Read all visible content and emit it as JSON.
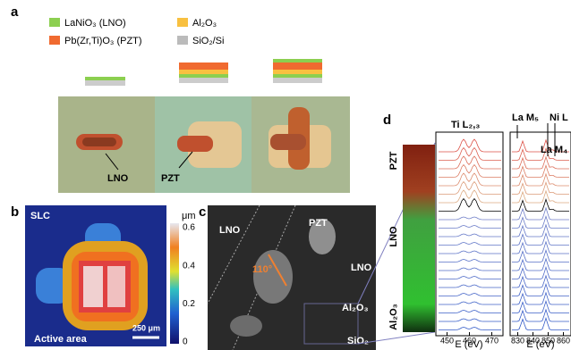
{
  "panels": {
    "a": {
      "label": "a",
      "legend": [
        "LaNiO₃ (LNO)",
        "Al₂O₃",
        "Pb(Zr,Ti)O₃ (PZT)",
        "SiO₂/Si"
      ],
      "image_labels": [
        "LNO",
        "PZT"
      ]
    },
    "b": {
      "label": "b",
      "title": "SLC",
      "unit": "μm",
      "colorbar_ticks": [
        "0.6",
        "0.4",
        "0.2",
        "0"
      ],
      "annotation": "Active area",
      "scale_bar": "250 μm"
    },
    "c": {
      "label": "c",
      "labels": [
        "LNO",
        "PZT",
        "LNO",
        "Al₂O₃",
        "SiO₂"
      ],
      "angle": "110°"
    },
    "d": {
      "label": "d",
      "rows": [
        "PZT",
        "LNO",
        "Al₂O₃"
      ],
      "left": {
        "title": "Ti L₂,₃",
        "xticks": [
          "450",
          "460",
          "470"
        ],
        "xlabel": "E (eV)"
      },
      "right": {
        "annotations": [
          "La M₅",
          "Ni L",
          "La M₄"
        ],
        "xticks": [
          "830",
          "840",
          "850",
          "860"
        ],
        "xlabel": "E (eV)"
      }
    }
  }
}
